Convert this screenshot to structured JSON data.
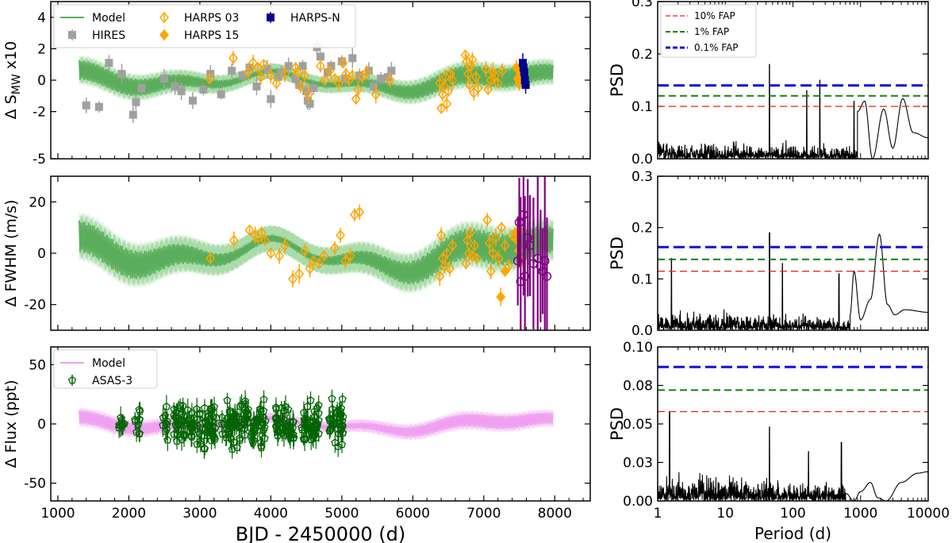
{
  "chart_data": [
    {
      "type": "scatter",
      "panel": "ts-smw",
      "ylabel": "Δ S",
      "ylabel_sub": "MW",
      "ylabel_suffix": " x10",
      "xlim": [
        900,
        8500
      ],
      "ylim": [
        -5,
        5
      ],
      "yticks": [
        -5,
        -2,
        0,
        2,
        4
      ],
      "ytick_labels": [
        "-5",
        "-2",
        "0",
        "2",
        "4"
      ],
      "legend": {
        "position": "top-left",
        "entries": [
          {
            "label": "Model",
            "color": "#5aad5a",
            "marker": "line"
          },
          {
            "label": "HIRES",
            "color": "#a0a0a0",
            "marker": "square"
          },
          {
            "label": "HARPS 03",
            "color": "#ffa500",
            "marker": "diamond-open"
          },
          {
            "label": "HARPS 15",
            "color": "#ffa500",
            "marker": "diamond"
          },
          {
            "label": "HARPS-N",
            "color": "#00008b",
            "marker": "square"
          }
        ]
      },
      "model": {
        "color": "#5aad5a",
        "band_color": "#a9dca9",
        "amp": 0.45,
        "offset": 0
      },
      "series": [
        {
          "name": "HIRES",
          "color": "#a0a0a0",
          "marker": "square",
          "x": [
            1400,
            1580,
            1720,
            1900,
            2060,
            2100,
            2180,
            2500,
            2650,
            2740,
            2900,
            3050,
            3150,
            3300,
            3450,
            3600,
            3700,
            3800,
            3950,
            4000,
            4100,
            4150,
            4250,
            4350,
            4400,
            4450,
            4500,
            4520,
            4550,
            4600,
            4650,
            4700,
            4800,
            4850,
            5000,
            5050,
            5150,
            5250,
            5380,
            5450,
            5550,
            5650,
            5700
          ],
          "y": [
            -1.6,
            -1.7,
            1.1,
            0.4,
            -2.2,
            -1.4,
            -0.5,
            0.1,
            -0.4,
            -0.7,
            -1.3,
            -0.6,
            0.4,
            -0.9,
            0.6,
            0.3,
            0.8,
            -0.4,
            0.7,
            -1.2,
            0.2,
            0.5,
            0.9,
            0.1,
            -0.3,
            0.9,
            -0.7,
            -1.3,
            -1.5,
            -0.5,
            2.1,
            1.5,
            0.5,
            0.9,
            1.2,
            0.1,
            1.4,
            0.3,
            0.6,
            -0.4,
            0.1,
            0.2,
            0.6
          ]
        },
        {
          "name": "HARPS 03",
          "color": "#ffa500",
          "marker": "diamond-open",
          "x": [
            3140,
            3470,
            3680,
            3750,
            3820,
            3860,
            3900,
            4000,
            4080,
            4200,
            4350,
            4380,
            4420,
            4480,
            4530,
            4700,
            4760,
            4830,
            4900,
            4960,
            5020,
            5060,
            5100,
            5150,
            5200,
            5230,
            5290,
            5350,
            5480,
            5680,
            6380,
            6400,
            6420,
            6440,
            6460,
            6480,
            6500,
            6530,
            6560,
            6740,
            6760,
            6780,
            6800,
            6820,
            6840,
            6860,
            6890,
            6920,
            7030,
            7060,
            7100,
            7130,
            7160,
            7200,
            7260
          ],
          "y": [
            0.1,
            1.4,
            0.5,
            1.1,
            0.8,
            0.2,
            1.0,
            0.3,
            -0.2,
            0.4,
            0.8,
            0.5,
            -0.4,
            0.3,
            -0.9,
            0.9,
            0.0,
            0.6,
            0.1,
            -0.2,
            1.1,
            0.4,
            0.0,
            0.3,
            -1.2,
            -0.6,
            0.2,
            0.5,
            -0.9,
            0.0,
            -0.2,
            -1.8,
            -0.9,
            -0.4,
            0.2,
            -1.5,
            -0.7,
            0.4,
            0.0,
            1.6,
            1.2,
            0.4,
            -0.3,
            0.9,
            1.3,
            -0.8,
            0.2,
            -0.5,
            0.7,
            -0.6,
            0.0,
            0.5,
            0.3,
            -0.2,
            0.6
          ]
        },
        {
          "name": "HARPS 15",
          "color": "#ffa500",
          "marker": "diamond",
          "x": [
            7460,
            7480,
            7500,
            7520,
            7540
          ],
          "y": [
            0.8,
            0.1,
            -0.2,
            0.4,
            0.3
          ]
        },
        {
          "name": "HARPS-N",
          "color": "#00008b",
          "marker": "square",
          "x": [
            7550,
            7560,
            7570,
            7580,
            7590
          ],
          "y": [
            1.1,
            0.8,
            0.5,
            0.0,
            -0.3
          ]
        }
      ]
    },
    {
      "type": "scatter",
      "panel": "ts-fwhm",
      "ylabel": "Δ FWHM (m/s)",
      "xlim": [
        900,
        8500
      ],
      "ylim": [
        -30,
        30
      ],
      "yticks": [
        -20,
        0,
        20
      ],
      "ytick_labels": [
        "-20",
        "0",
        "20"
      ],
      "model": {
        "color": "#5aad5a",
        "band_color": "#a9dca9",
        "amp": 4.5,
        "offset": 0
      },
      "series": [
        {
          "name": "HARPS 03",
          "color": "#ffa500",
          "marker": "diamond-open",
          "x": [
            3150,
            3480,
            3700,
            3780,
            3820,
            3870,
            3920,
            4000,
            4120,
            4200,
            4310,
            4400,
            4480,
            4550,
            4600,
            4680,
            4750,
            4900,
            4980,
            5050,
            5120,
            5180,
            5250,
            6380,
            6400,
            6420,
            6450,
            6480,
            6520,
            6560,
            6750,
            6770,
            6790,
            6810,
            6840,
            6870,
            6900,
            7050,
            7080,
            7100,
            7130,
            7170,
            7210,
            7250,
            7300,
            7350,
            7400
          ],
          "y": [
            -2,
            5,
            9,
            7,
            6,
            8,
            5,
            0,
            -1,
            3,
            -10,
            -8,
            1,
            -6,
            -3,
            -4,
            -1,
            2,
            7,
            -3,
            -1,
            15,
            16,
            -9,
            7,
            -2,
            -5,
            0,
            -6,
            3,
            -4,
            5,
            0,
            8,
            -1,
            3,
            -2,
            13,
            4,
            -7,
            0,
            6,
            -2,
            10,
            3,
            -5,
            7
          ]
        },
        {
          "name": "HARPS 15",
          "color": "#ffa500",
          "marker": "diamond",
          "x": [
            7240,
            7300,
            7450,
            7470,
            7490,
            7510,
            7530
          ],
          "y": [
            -17,
            -7,
            8,
            5,
            1,
            9,
            -3
          ]
        },
        {
          "name": "HARPS-N",
          "color": "#800080",
          "marker": "circle-open",
          "x": [
            7480,
            7500,
            7520,
            7560,
            7580,
            7620,
            7650,
            7700,
            7760,
            7800,
            7830,
            7860,
            7890
          ],
          "y": [
            -3,
            12,
            -11,
            15,
            -9,
            6,
            3,
            -4,
            -2,
            -5,
            -7,
            -3,
            -9
          ]
        }
      ]
    },
    {
      "type": "scatter",
      "panel": "ts-flux",
      "ylabel": "Δ Flux (ppt)",
      "xlabel": "BJD - 2450000 (d)",
      "xlim": [
        900,
        8500
      ],
      "ylim": [
        -65,
        65
      ],
      "xticks": [
        1000,
        2000,
        3000,
        4000,
        5000,
        6000,
        7000,
        8000
      ],
      "xtick_labels": [
        "1000",
        "2000",
        "3000",
        "4000",
        "5000",
        "6000",
        "7000",
        "8000"
      ],
      "yticks": [
        -50,
        0,
        50
      ],
      "ytick_labels": [
        "-50",
        "0",
        "50"
      ],
      "legend": {
        "position": "top-left",
        "entries": [
          {
            "label": "Model",
            "color": "#f0a0f0",
            "marker": "line"
          },
          {
            "label": "ASAS-3",
            "color": "#006400",
            "marker": "pentagon-open"
          }
        ]
      },
      "model": {
        "color": "#f0a0f0",
        "band_color": "#f7ccf7",
        "amp": 4,
        "offset": 0
      },
      "clusters": [
        {
          "center": 1900,
          "width": 40,
          "n": 8,
          "spread": 12
        },
        {
          "center": 2120,
          "width": 40,
          "n": 10,
          "spread": 22
        },
        {
          "center": 2520,
          "width": 60,
          "n": 10,
          "spread": 22
        },
        {
          "center": 2780,
          "width": 150,
          "n": 45,
          "spread": 26
        },
        {
          "center": 3100,
          "width": 150,
          "n": 45,
          "spread": 28
        },
        {
          "center": 3450,
          "width": 150,
          "n": 50,
          "spread": 32
        },
        {
          "center": 3780,
          "width": 150,
          "n": 50,
          "spread": 34
        },
        {
          "center": 4200,
          "width": 130,
          "n": 45,
          "spread": 28
        },
        {
          "center": 4560,
          "width": 130,
          "n": 45,
          "spread": 30
        },
        {
          "center": 4920,
          "width": 100,
          "n": 35,
          "spread": 34
        }
      ],
      "series": [
        {
          "name": "ASAS-3",
          "color": "#006400",
          "marker": "pentagon-open"
        }
      ]
    },
    {
      "type": "line",
      "panel": "psd-smw",
      "ylabel": "PSD",
      "xscale": "log",
      "xlim": [
        1,
        10000
      ],
      "ylim": [
        0,
        0.3
      ],
      "yticks": [
        0.0,
        0.1,
        0.2,
        0.3
      ],
      "ytick_labels": [
        "0.0",
        "0.1",
        "0.2",
        "0.3"
      ],
      "fap": [
        {
          "label": "10% FAP",
          "value": 0.1,
          "color": "#e02020",
          "width": 1.2
        },
        {
          "label": "1% FAP",
          "value": 0.12,
          "color": "#108010",
          "width": 2
        },
        {
          "label": "0.1% FAP",
          "value": 0.14,
          "color": "#1010e0",
          "width": 3
        }
      ],
      "noise": {
        "base": 0.045,
        "decay": 0.012
      },
      "peaks": [
        {
          "period": 45,
          "height": 0.18
        },
        {
          "period": 160,
          "height": 0.13
        },
        {
          "period": 250,
          "height": 0.15
        },
        {
          "period": 800,
          "height": 0.11
        }
      ],
      "smooth": [
        [
          900,
          0.09
        ],
        [
          1150,
          0.11
        ],
        [
          1500,
          0.0
        ],
        [
          2200,
          0.095
        ],
        [
          3000,
          0.02
        ],
        [
          4200,
          0.115
        ],
        [
          6000,
          0.05
        ],
        [
          10000,
          0.04
        ]
      ],
      "legend": {
        "position": "top-left"
      }
    },
    {
      "type": "line",
      "panel": "psd-fwhm",
      "ylabel": "PSD",
      "xscale": "log",
      "xlim": [
        1,
        10000
      ],
      "ylim": [
        0,
        0.3
      ],
      "yticks": [
        0.0,
        0.1,
        0.2,
        0.3
      ],
      "ytick_labels": [
        "0.0",
        "0.1",
        "0.2",
        "0.3"
      ],
      "fap": [
        {
          "label": "10% FAP",
          "value": 0.115,
          "color": "#e02020",
          "width": 1.2
        },
        {
          "label": "1% FAP",
          "value": 0.138,
          "color": "#108010",
          "width": 2
        },
        {
          "label": "0.1% FAP",
          "value": 0.162,
          "color": "#1010e0",
          "width": 3
        }
      ],
      "noise": {
        "base": 0.05,
        "decay": 0.012
      },
      "peaks": [
        {
          "period": 1.6,
          "height": 0.14
        },
        {
          "period": 45,
          "height": 0.19
        },
        {
          "period": 70,
          "height": 0.13
        },
        {
          "period": 480,
          "height": 0.11
        }
      ],
      "smooth": [
        [
          700,
          0.03
        ],
        [
          800,
          0.115
        ],
        [
          1000,
          0.02
        ],
        [
          1400,
          0.06
        ],
        [
          1900,
          0.187
        ],
        [
          2500,
          0.05
        ],
        [
          3200,
          0.03
        ],
        [
          4500,
          0.04
        ],
        [
          10000,
          0.035
        ]
      ]
    },
    {
      "type": "line",
      "panel": "psd-flux",
      "ylabel": "PSD",
      "xlabel": "Period (d)",
      "xscale": "log",
      "xlim": [
        1,
        10000
      ],
      "ylim": [
        0,
        0.1
      ],
      "xticks": [
        1,
        10,
        100,
        1000,
        10000
      ],
      "xtick_labels": [
        "1",
        "10",
        "100",
        "1000",
        "10000"
      ],
      "yticks": [
        0.0,
        0.025,
        0.05,
        0.075,
        0.1
      ],
      "ytick_labels": [
        "0.00",
        "0.03",
        "0.05",
        "0.08",
        "0.10"
      ],
      "fap": [
        {
          "label": "10% FAP",
          "value": 0.058,
          "color": "#e02020",
          "width": 1.2
        },
        {
          "label": "1% FAP",
          "value": 0.072,
          "color": "#108010",
          "width": 2
        },
        {
          "label": "0.1% FAP",
          "value": 0.087,
          "color": "#1010e0",
          "width": 3
        }
      ],
      "noise": {
        "base": 0.022,
        "decay": 0.004
      },
      "peaks": [
        {
          "period": 1.5,
          "height": 0.058
        },
        {
          "period": 45,
          "height": 0.048
        },
        {
          "period": 170,
          "height": 0.032
        },
        {
          "period": 520,
          "height": 0.038
        }
      ],
      "smooth": [
        [
          600,
          0.005
        ],
        [
          800,
          0.0
        ],
        [
          1000,
          0.006
        ],
        [
          1400,
          0.012
        ],
        [
          1800,
          0.002
        ],
        [
          2400,
          0.0
        ],
        [
          4000,
          0.012
        ],
        [
          7000,
          0.018
        ],
        [
          10000,
          0.019
        ]
      ]
    }
  ],
  "legend_psd": [
    {
      "label": "10% FAP",
      "color": "#e02020"
    },
    {
      "label": "1% FAP",
      "color": "#108010"
    },
    {
      "label": "0.1% FAP",
      "color": "#1010e0"
    }
  ]
}
